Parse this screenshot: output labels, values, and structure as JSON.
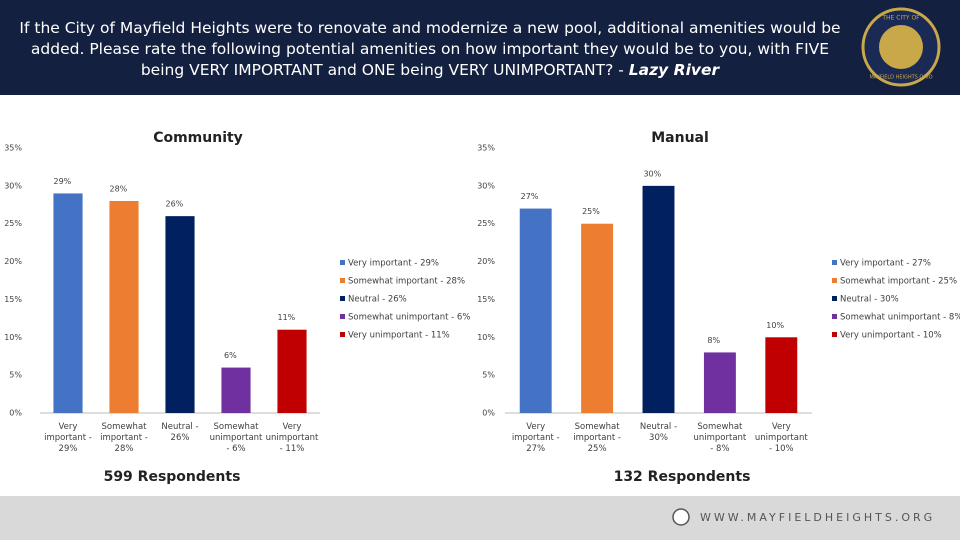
{
  "header": {
    "title": "If the City of Mayfield Heights were to renovate and modernize a new pool, additional amenities would be added. Please rate the following potential amenities on how important they would be to you, with FIVE being VERY IMPORTANT and ONE being VERY UNIMPORTANT? -",
    "emphasis": "Lazy River",
    "logo_top": "THE CITY OF",
    "logo_bottom": "MAYFIELD HEIGHTS OHIO"
  },
  "footer": {
    "url": "WWW.MAYFIELDHEIGHTS.ORG"
  },
  "chart_data": [
    {
      "type": "bar",
      "title": "Community",
      "note": "599 Respondents",
      "categories": [
        "Very important - 29%",
        "Somewhat important - 28%",
        "Neutral - 26%",
        "Somewhat unimportant - 6%",
        "Very unimportant - 11%"
      ],
      "values": [
        29,
        28,
        26,
        6,
        11
      ],
      "value_labels": [
        "29%",
        "28%",
        "26%",
        "6%",
        "11%"
      ],
      "colors": [
        "#4472c4",
        "#ed7d31",
        "#002060",
        "#7030a0",
        "#c00000"
      ],
      "ylim": [
        0,
        35
      ],
      "yticks": [
        {
          "value": 0,
          "label": "0%"
        },
        {
          "value": 5,
          "label": "5%"
        },
        {
          "value": 10,
          "label": "10%"
        },
        {
          "value": 15,
          "label": "15%"
        },
        {
          "value": 20,
          "label": "20%"
        },
        {
          "value": 25,
          "label": "25%"
        },
        {
          "value": 30,
          "label": "30%"
        },
        {
          "value": 35,
          "label": "35%"
        }
      ],
      "grid": false,
      "legend": "right"
    },
    {
      "type": "bar",
      "title": "Manual",
      "note": "132 Respondents",
      "categories": [
        "Very important - 27%",
        "Somewhat important - 25%",
        "Neutral - 30%",
        "Somewhat unimportant - 8%",
        "Very unimportant - 10%"
      ],
      "values": [
        27,
        25,
        30,
        8,
        10
      ],
      "value_labels": [
        "27%",
        "25%",
        "30%",
        "8%",
        "10%"
      ],
      "colors": [
        "#4472c4",
        "#ed7d31",
        "#002060",
        "#7030a0",
        "#c00000"
      ],
      "ylim": [
        0,
        35
      ],
      "yticks": [
        {
          "value": 0,
          "label": "0%"
        },
        {
          "value": 5,
          "label": "5%"
        },
        {
          "value": 10,
          "label": "10%"
        },
        {
          "value": 15,
          "label": "15%"
        },
        {
          "value": 20,
          "label": "20%"
        },
        {
          "value": 25,
          "label": "25%"
        },
        {
          "value": 30,
          "label": "30%"
        },
        {
          "value": 35,
          "label": "35%"
        }
      ],
      "grid": false,
      "legend": "right"
    }
  ]
}
